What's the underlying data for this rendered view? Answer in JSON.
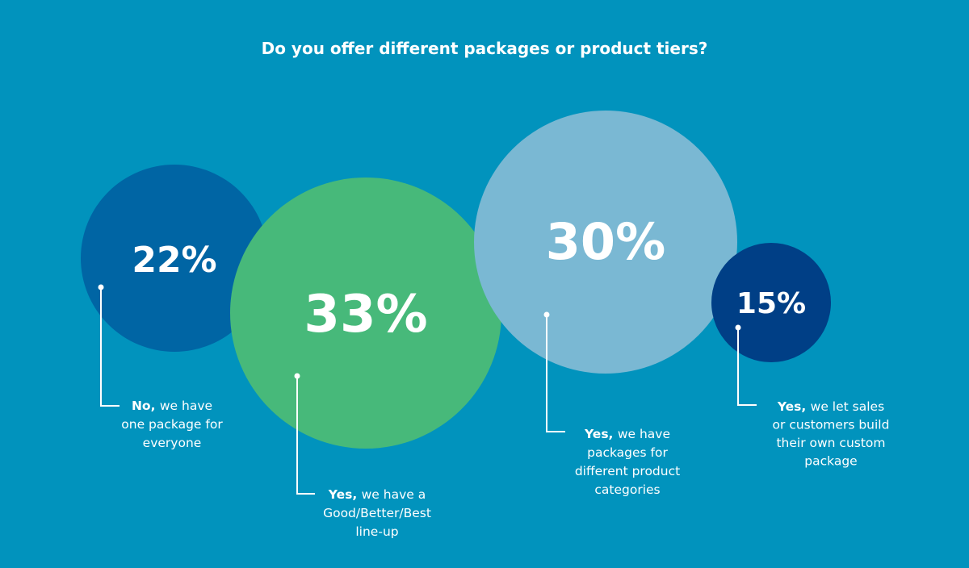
{
  "chart_data": {
    "type": "bubble",
    "title": "Do you offer different packages or product tiers?",
    "series": [
      {
        "name": "No, one package",
        "value": 22,
        "value_label": "22%",
        "color": "#0065a4",
        "label_bold": "No,",
        "label_lines": [
          "we have",
          "one package for",
          "everyone"
        ]
      },
      {
        "name": "Yes, Good/Better/Best",
        "value": 33,
        "value_label": "33%",
        "color": "#47b97a",
        "label_bold": "Yes,",
        "label_lines": [
          "we have a",
          "Good/Better/Best",
          "line-up"
        ]
      },
      {
        "name": "Yes, product categories",
        "value": 30,
        "value_label": "30%",
        "color": "#7ab8d3",
        "label_bold": "Yes,",
        "label_lines": [
          "we have",
          "packages for",
          "different product",
          "categories"
        ]
      },
      {
        "name": "Yes, custom package",
        "value": 15,
        "value_label": "15%",
        "color": "#003f86",
        "label_bold": "Yes,",
        "label_lines": [
          "we let sales",
          "or customers build",
          "their own custom",
          "package"
        ]
      }
    ]
  }
}
